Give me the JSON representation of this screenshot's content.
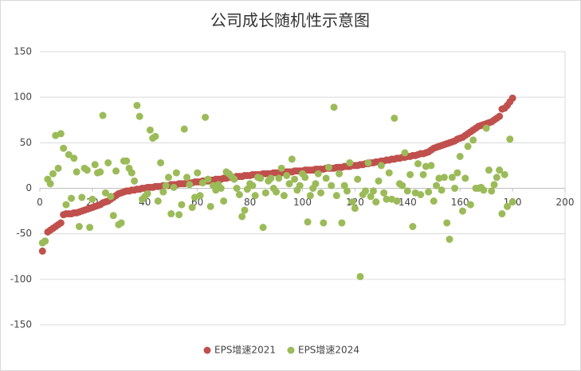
{
  "chart_data": {
    "type": "scatter",
    "title": "公司成长随机性示意图",
    "x": [
      1,
      2,
      3,
      4,
      5,
      6,
      7,
      8,
      9,
      10,
      11,
      12,
      13,
      14,
      15,
      16,
      17,
      18,
      19,
      20,
      21,
      22,
      23,
      24,
      25,
      26,
      27,
      28,
      29,
      30,
      31,
      32,
      33,
      34,
      35,
      36,
      37,
      38,
      39,
      40,
      41,
      42,
      43,
      44,
      45,
      46,
      47,
      48,
      49,
      50,
      51,
      52,
      53,
      54,
      55,
      56,
      57,
      58,
      59,
      60,
      61,
      62,
      63,
      64,
      65,
      66,
      67,
      68,
      69,
      70,
      71,
      72,
      73,
      74,
      75,
      76,
      77,
      78,
      79,
      80,
      81,
      82,
      83,
      84,
      85,
      86,
      87,
      88,
      89,
      90,
      91,
      92,
      93,
      94,
      95,
      96,
      97,
      98,
      99,
      100,
      101,
      102,
      103,
      104,
      105,
      106,
      107,
      108,
      109,
      110,
      111,
      112,
      113,
      114,
      115,
      116,
      117,
      118,
      119,
      120,
      121,
      122,
      123,
      124,
      125,
      126,
      127,
      128,
      129,
      130,
      131,
      132,
      133,
      134,
      135,
      136,
      137,
      138,
      139,
      140,
      141,
      142,
      143,
      144,
      145,
      146,
      147,
      148,
      149,
      150,
      151,
      152,
      153,
      154,
      155,
      156,
      157,
      158,
      159,
      160,
      161,
      162,
      163,
      164,
      165,
      166,
      167,
      168,
      169,
      170,
      171,
      172,
      173,
      174,
      175,
      176,
      177,
      178,
      179,
      180
    ],
    "series": [
      {
        "name": "EPS增速2021",
        "color": "#c0504d",
        "values": [
          -69,
          -58,
          -48,
          -46,
          -44,
          -42,
          -40,
          -38,
          -29,
          -28,
          -28,
          -28,
          -27,
          -27,
          -26,
          -25,
          -24,
          -23,
          -22,
          -21,
          -20,
          -19,
          -18,
          -16,
          -15,
          -14,
          -12,
          -10,
          -8,
          -6,
          -5,
          -4,
          -3,
          -3,
          -2,
          -2,
          -1,
          -1,
          0,
          0,
          1,
          1,
          1,
          2,
          2,
          2,
          3,
          3,
          3,
          4,
          4,
          4,
          5,
          5,
          5,
          6,
          6,
          6,
          7,
          7,
          7,
          8,
          8,
          8,
          9,
          9,
          10,
          10,
          10,
          11,
          11,
          12,
          12,
          12,
          13,
          13,
          13,
          14,
          14,
          14,
          15,
          15,
          15,
          15,
          16,
          16,
          16,
          16,
          17,
          17,
          17,
          17,
          18,
          18,
          18,
          18,
          19,
          19,
          19,
          19,
          20,
          20,
          20,
          20,
          21,
          21,
          21,
          21,
          22,
          22,
          22,
          22,
          23,
          23,
          23,
          24,
          24,
          24,
          25,
          25,
          25,
          26,
          26,
          27,
          27,
          28,
          28,
          29,
          29,
          30,
          30,
          31,
          31,
          32,
          32,
          33,
          33,
          34,
          34,
          35,
          35,
          36,
          36,
          37,
          38,
          38,
          39,
          40,
          42,
          44,
          45,
          46,
          47,
          48,
          49,
          50,
          51,
          52,
          54,
          55,
          56,
          58,
          60,
          62,
          64,
          66,
          68,
          69,
          70,
          71,
          72,
          73,
          75,
          77,
          79,
          87,
          88,
          91,
          95,
          99
        ]
      },
      {
        "name": "EPS增速2024",
        "color": "#9bbb59",
        "values": [
          -60,
          -58,
          10,
          5,
          16,
          58,
          22,
          60,
          44,
          -18,
          37,
          -11,
          33,
          18,
          -42,
          -10,
          22,
          20,
          -43,
          -12,
          26,
          17,
          18,
          80,
          -5,
          28,
          -9,
          -30,
          19,
          -40,
          -38,
          30,
          30,
          22,
          17,
          8,
          91,
          79,
          -12,
          -9,
          -6,
          64,
          55,
          57,
          -14,
          28,
          -4,
          3,
          12,
          -28,
          1,
          17,
          -29,
          -18,
          65,
          12,
          4,
          -21,
          -10,
          17,
          -8,
          6,
          78,
          10,
          -20,
          3,
          -2,
          4,
          0,
          -14,
          18,
          16,
          13,
          10,
          0,
          -7,
          -31,
          -24,
          -1,
          5,
          3,
          -8,
          12,
          11,
          -43,
          -5,
          8,
          11,
          0,
          -4,
          11,
          22,
          -8,
          14,
          5,
          32,
          10,
          -2,
          3,
          16,
          12,
          -37,
          -8,
          0,
          5,
          16,
          -5,
          -38,
          11,
          23,
          3,
          89,
          -8,
          16,
          -38,
          3,
          -3,
          28,
          -15,
          -22,
          10,
          -97,
          -7,
          -3,
          28,
          -9,
          -3,
          -15,
          8,
          25,
          -5,
          -12,
          17,
          -12,
          77,
          -14,
          5,
          3,
          39,
          -3,
          15,
          -42,
          -5,
          27,
          -7,
          15,
          24,
          -4,
          25,
          -14,
          3,
          11,
          -2,
          12,
          -38,
          -56,
          12,
          0,
          17,
          35,
          -25,
          11,
          46,
          -18,
          53,
          0,
          0,
          1,
          -2,
          66,
          20,
          -3,
          4,
          12,
          20,
          -28,
          15,
          -20,
          54,
          -15
        ]
      }
    ],
    "xlim": [
      0,
      200
    ],
    "xticks": [
      0,
      20,
      40,
      60,
      80,
      100,
      120,
      140,
      160,
      180,
      200
    ],
    "ylim": [
      -150,
      150
    ],
    "yticks": [
      -150,
      -100,
      -50,
      0,
      50,
      100,
      150
    ],
    "grid": true,
    "legend": "bottom"
  }
}
